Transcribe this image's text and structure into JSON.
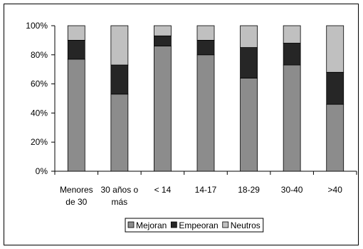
{
  "chart_data": {
    "type": "bar",
    "stacked": true,
    "percent": true,
    "categories": [
      [
        "Menores",
        "de 30"
      ],
      [
        "30 años o",
        "más"
      ],
      [
        "< 14"
      ],
      [
        "14-17"
      ],
      [
        "18-29"
      ],
      [
        "30-40"
      ],
      [
        ">40"
      ]
    ],
    "series": [
      {
        "name": "Mejoran",
        "color": "#8c8c8c",
        "values": [
          77,
          53,
          86,
          80,
          64,
          73,
          46
        ]
      },
      {
        "name": "Empeoran",
        "color": "#262626",
        "values": [
          13,
          20,
          7,
          10,
          21,
          15,
          22
        ]
      },
      {
        "name": "Neutros",
        "color": "#c0c0c0",
        "values": [
          10,
          27,
          7,
          10,
          15,
          12,
          32
        ]
      }
    ],
    "yticks": [
      "0%",
      "20%",
      "40%",
      "60%",
      "80%",
      "100%"
    ],
    "ylim": [
      0,
      100
    ],
    "grid": false,
    "legend_position": "bottom"
  }
}
